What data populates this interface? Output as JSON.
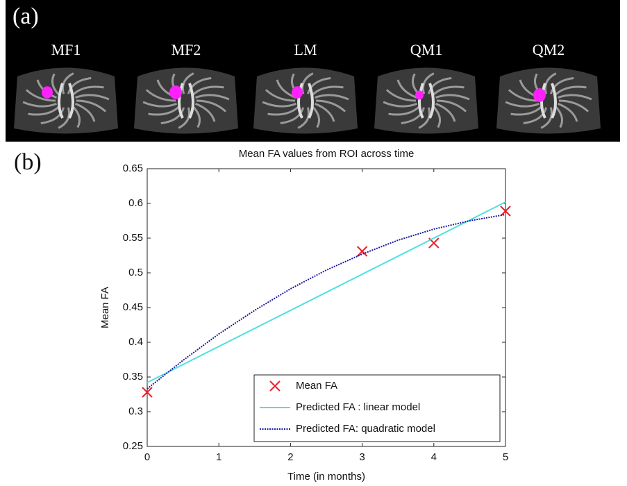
{
  "panel_a": {
    "label": "(a)",
    "images": [
      "MF1",
      "MF2",
      "LM",
      "QM1",
      "QM2"
    ]
  },
  "panel_b_label": "(b)",
  "chart_data": {
    "type": "line",
    "title": "Mean FA values from ROI across time",
    "x_label": "Time (in months)",
    "y_label": "Mean FA",
    "xlim": [
      0,
      5
    ],
    "xticks": [
      0,
      1,
      2,
      3,
      4,
      5
    ],
    "ylim": [
      0.25,
      0.65
    ],
    "yticks": [
      0.25,
      0.3,
      0.35,
      0.4,
      0.45,
      0.5,
      0.55,
      0.6,
      0.65
    ],
    "grid": false,
    "legend": "lower right",
    "series": [
      {
        "name": "Mean FA",
        "color": "#e8202a",
        "style": "marker",
        "x": [
          0,
          3,
          4,
          5
        ],
        "values": [
          0.328,
          0.531,
          0.543,
          0.589
        ]
      },
      {
        "name": "Predicted FA : linear model",
        "color": "#4fe0e0",
        "style": "solid",
        "x": [
          0,
          5
        ],
        "values": [
          0.342,
          0.602
        ]
      },
      {
        "name": "Predicted FA: quadratic model",
        "color": "#1a1aa0",
        "style": "dotted",
        "x": [
          0,
          0.5,
          1,
          1.5,
          2,
          2.5,
          3,
          3.5,
          4,
          4.5,
          5
        ],
        "values": [
          0.333,
          0.374,
          0.412,
          0.446,
          0.477,
          0.504,
          0.527,
          0.547,
          0.563,
          0.575,
          0.584
        ]
      }
    ]
  }
}
